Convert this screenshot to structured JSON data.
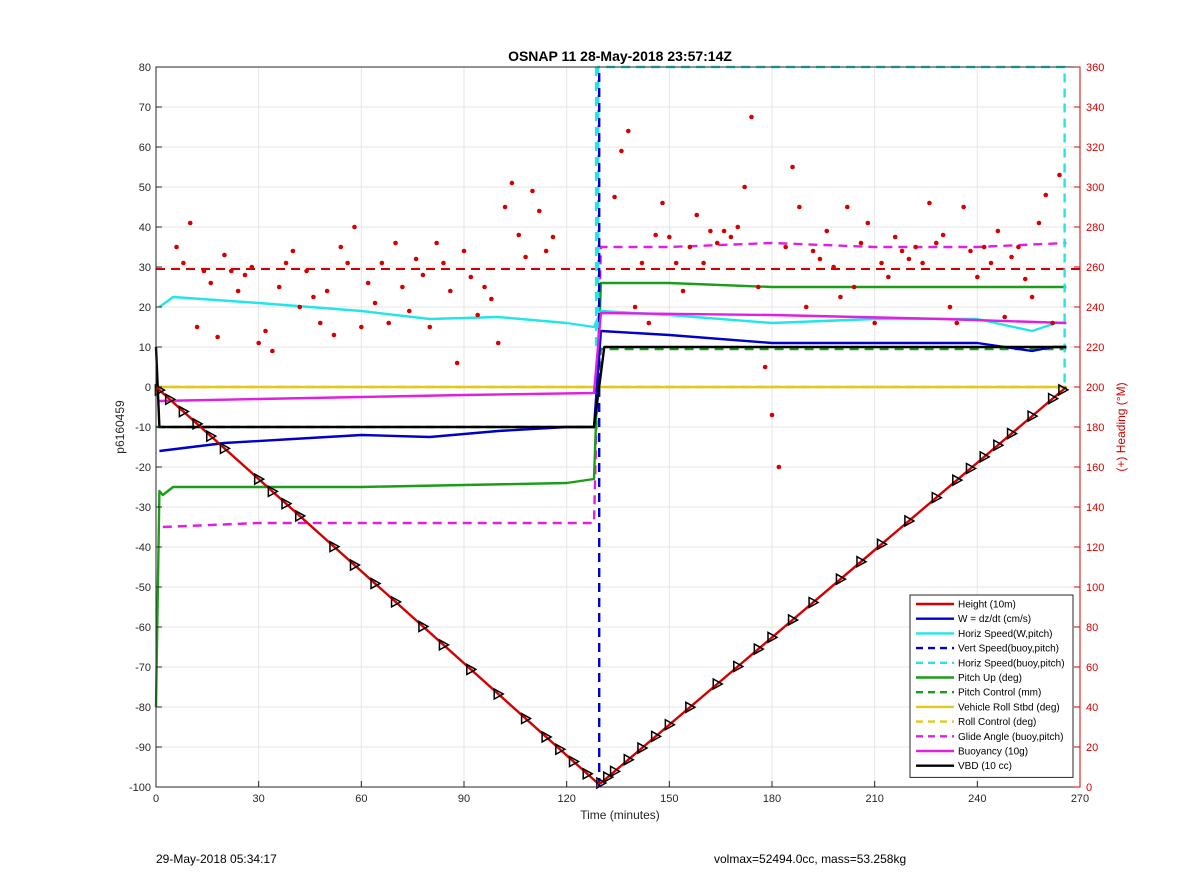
{
  "chart_data": {
    "type": "line",
    "title": "OSNAP 11 28-May-2018 23:57:14Z",
    "xlabel": "Time (minutes)",
    "ylabel": "p6160459",
    "y2label": "(+) Heading (°M)",
    "xlim": [
      0,
      270
    ],
    "ylim": [
      -100,
      80
    ],
    "y2lim": [
      0,
      360
    ],
    "xticks": [
      0,
      30,
      60,
      90,
      120,
      150,
      180,
      210,
      240,
      270
    ],
    "yticks": [
      -100,
      -90,
      -80,
      -70,
      -60,
      -50,
      -40,
      -30,
      -20,
      -10,
      0,
      10,
      20,
      30,
      40,
      50,
      60,
      70,
      80
    ],
    "y2ticks": [
      0,
      20,
      40,
      60,
      80,
      100,
      120,
      140,
      160,
      180,
      200,
      220,
      240,
      260,
      280,
      300,
      320,
      340,
      360
    ],
    "grid": true,
    "legend_position": "bottom-right",
    "colors": {
      "red": "#d40000",
      "blue": "#0000c8",
      "cyan": "#22e6e6",
      "green": "#1a9e1a",
      "yellow": "#e2c81a",
      "magenta": "#e020e0",
      "black": "#000000",
      "right_axis": "#d40000"
    },
    "series": [
      {
        "name": "Height (10m)",
        "color": "#d40000",
        "style": "solid",
        "x": [
          0,
          129,
          130,
          266
        ],
        "y": [
          0,
          -99,
          -99,
          0
        ]
      },
      {
        "name": "W = dz/dt (cm/s)",
        "color": "#0000c8",
        "style": "solid",
        "x": [
          1,
          20,
          40,
          60,
          80,
          100,
          120,
          128,
          130,
          150,
          180,
          210,
          240,
          256,
          262,
          266
        ],
        "y": [
          -16,
          -14,
          -13,
          -12,
          -12.5,
          -11,
          -10,
          -10,
          14,
          13,
          11,
          11,
          11,
          9,
          10,
          10
        ]
      },
      {
        "name": "Horiz Speed(W,pitch)",
        "color": "#22e6e6",
        "style": "solid",
        "x": [
          1,
          5,
          30,
          60,
          80,
          100,
          120,
          128,
          130,
          150,
          180,
          210,
          240,
          256,
          263,
          266
        ],
        "y": [
          20,
          22.5,
          21,
          19,
          17,
          17.5,
          16,
          15,
          19,
          18,
          16,
          17,
          17,
          14,
          16,
          16
        ]
      },
      {
        "name": "Vert Speed(buoy,pitch)",
        "color": "#0000c8",
        "style": "dashed",
        "x": [
          129.5,
          129.5
        ],
        "y": [
          -100,
          80
        ]
      },
      {
        "name": "Horiz Speed(buoy,pitch)",
        "color": "#22e6e6",
        "style": "dashed",
        "x": [
          128.6,
          128.6,
          129.2,
          129.2,
          265.5,
          265.5
        ],
        "y": [
          80,
          10,
          10,
          80,
          80,
          0
        ]
      },
      {
        "name": "Pitch Up (deg)",
        "color": "#1a9e1a",
        "style": "solid",
        "x": [
          0,
          1,
          2,
          5,
          30,
          60,
          90,
          120,
          128,
          130,
          150,
          180,
          210,
          240,
          266
        ],
        "y": [
          -80,
          -26,
          -27,
          -25,
          -25,
          -25,
          -24.5,
          -24,
          -23,
          26,
          26,
          25,
          25,
          25,
          25
        ]
      },
      {
        "name": "Pitch Control (mm)",
        "color": "#1a9e1a",
        "style": "dashed",
        "x": [
          0,
          128,
          130,
          266
        ],
        "y": [
          -10,
          -10,
          9.5,
          9.5
        ]
      },
      {
        "name": "Vehicle Roll Stbd (deg)",
        "color": "#e2c81a",
        "style": "solid",
        "x": [
          0,
          5,
          30,
          60,
          90,
          120,
          128,
          132,
          160,
          200,
          230,
          266
        ],
        "y": [
          0,
          0,
          0,
          0,
          0,
          0,
          0,
          0,
          0,
          0,
          0,
          0
        ]
      },
      {
        "name": "Roll Control (deg)",
        "color": "#e2c81a",
        "style": "dashed",
        "x": [
          0,
          5,
          30,
          60,
          90,
          120,
          128,
          132,
          160,
          200,
          230,
          266
        ],
        "y": [
          0,
          0,
          0,
          0,
          0,
          0,
          0,
          0,
          0,
          0,
          0,
          0
        ]
      },
      {
        "name": "Glide Angle (buoy,pitch)",
        "color": "#e020e0",
        "style": "dashed",
        "x": [
          2,
          30,
          60,
          90,
          120,
          128,
          130,
          150,
          180,
          210,
          240,
          266
        ],
        "y": [
          -35,
          -34,
          -34,
          -34,
          -34,
          -34,
          35,
          35,
          36,
          35,
          35,
          36
        ]
      },
      {
        "name": "Buoyancy (10g)",
        "color": "#e020e0",
        "style": "solid",
        "x": [
          1,
          30,
          60,
          90,
          128,
          130,
          180,
          230,
          266
        ],
        "y": [
          -3.5,
          -3,
          -2.5,
          -2,
          -1.5,
          18.5,
          18,
          17,
          16
        ]
      },
      {
        "name": "VBD (10 cc)",
        "color": "#000000",
        "style": "solid",
        "x": [
          0,
          1,
          30,
          60,
          90,
          128,
          131,
          200,
          266
        ],
        "y": [
          10,
          -10,
          -10,
          -10,
          -10,
          -10,
          10,
          10,
          10
        ]
      }
    ],
    "heading_reference": {
      "color": "#d40000",
      "style": "dashed",
      "heading": 259
    },
    "heading_points": {
      "color": "#d40000",
      "axis": "right",
      "x": [
        6,
        8,
        10,
        12,
        14,
        16,
        18,
        20,
        22,
        24,
        26,
        28,
        30,
        32,
        34,
        36,
        38,
        40,
        42,
        44,
        46,
        48,
        50,
        52,
        54,
        56,
        58,
        60,
        62,
        64,
        66,
        68,
        70,
        72,
        74,
        76,
        78,
        80,
        82,
        84,
        86,
        88,
        90,
        92,
        94,
        96,
        98,
        100,
        102,
        104,
        106,
        108,
        110,
        112,
        114,
        116,
        134,
        136,
        138,
        140,
        142,
        144,
        146,
        148,
        150,
        152,
        154,
        156,
        158,
        160,
        162,
        164,
        166,
        168,
        170,
        172,
        174,
        176,
        178,
        180,
        182,
        184,
        186,
        188,
        190,
        192,
        194,
        196,
        198,
        200,
        202,
        204,
        206,
        208,
        210,
        212,
        214,
        216,
        218,
        220,
        222,
        224,
        226,
        228,
        230,
        232,
        234,
        236,
        238,
        240,
        242,
        244,
        246,
        248,
        250,
        252,
        254,
        256,
        258,
        260,
        262,
        264
      ],
      "y": [
        270,
        262,
        282,
        230,
        258,
        252,
        225,
        266,
        258,
        248,
        256,
        260,
        222,
        228,
        218,
        250,
        262,
        268,
        240,
        258,
        245,
        232,
        248,
        226,
        270,
        262,
        280,
        230,
        252,
        242,
        262,
        232,
        272,
        250,
        238,
        264,
        256,
        230,
        272,
        262,
        248,
        212,
        268,
        255,
        236,
        250,
        244,
        222,
        290,
        302,
        276,
        265,
        298,
        288,
        268,
        275,
        295,
        318,
        328,
        240,
        262,
        232,
        276,
        292,
        275,
        262,
        248,
        270,
        286,
        262,
        278,
        272,
        278,
        275,
        280,
        300,
        335,
        250,
        210,
        186,
        160,
        270,
        310,
        290,
        240,
        268,
        264,
        278,
        260,
        245,
        290,
        250,
        272,
        282,
        232,
        262,
        255,
        275,
        268,
        264,
        270,
        262,
        292,
        272,
        276,
        240,
        232,
        290,
        268,
        255,
        270,
        262,
        278,
        235,
        265,
        270,
        254,
        245,
        282,
        296,
        232,
        306
      ]
    },
    "position_markers": {
      "color": "#000000",
      "on_series": "Height (10m)",
      "x": [
        1,
        4,
        8,
        12,
        16,
        20,
        30,
        34,
        38,
        42,
        52,
        58,
        64,
        70,
        78,
        84,
        92,
        100,
        108,
        114,
        118,
        122,
        126,
        130,
        132,
        134,
        138,
        142,
        146,
        150,
        156,
        164,
        170,
        176,
        180,
        186,
        192,
        200,
        206,
        212,
        220,
        228,
        234,
        238,
        242,
        246,
        250,
        256,
        262,
        265
      ]
    },
    "footer": {
      "left": "29-May-2018 05:34:17",
      "right": "volmax=52494.0cc, mass=53.258kg"
    }
  }
}
